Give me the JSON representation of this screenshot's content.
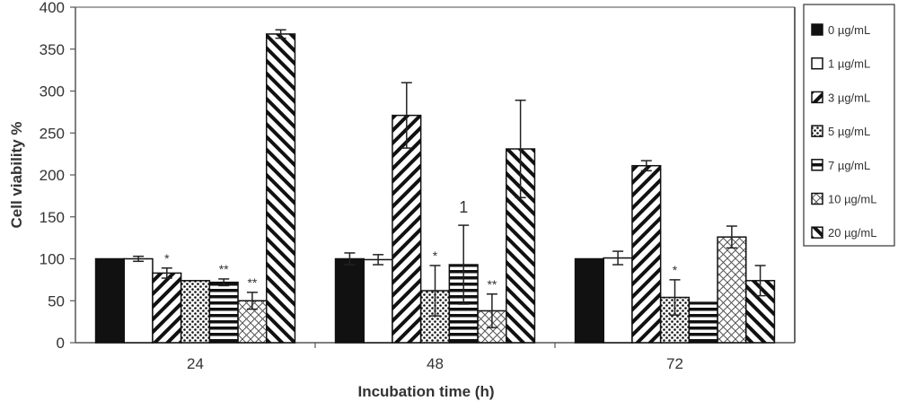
{
  "chart_data": {
    "type": "bar",
    "title": "",
    "xlabel": "Incubation time (h)",
    "ylabel": "Cell viability %",
    "ylim": [
      0,
      400
    ],
    "yticks": [
      0,
      50,
      100,
      150,
      200,
      250,
      300,
      350,
      400
    ],
    "grid": false,
    "legend_position": "right",
    "categories": [
      "24",
      "48",
      "72"
    ],
    "series": [
      {
        "name": "0 µg/mL",
        "pattern": "solid",
        "values": [
          100,
          100,
          100
        ],
        "errors": [
          0,
          7,
          0
        ],
        "annotations": [
          "",
          "",
          ""
        ]
      },
      {
        "name": "1 µg/mL",
        "pattern": "white",
        "values": [
          100,
          99,
          101
        ],
        "errors": [
          3,
          6,
          8
        ],
        "annotations": [
          "",
          "",
          ""
        ]
      },
      {
        "name": "3 µg/mL",
        "pattern": "diag-down",
        "values": [
          83,
          271,
          211
        ],
        "errors": [
          6,
          39,
          6
        ],
        "annotations": [
          "*",
          "",
          ""
        ]
      },
      {
        "name": "5 µg/mL",
        "pattern": "dots",
        "values": [
          74,
          62,
          54
        ],
        "errors": [
          0,
          30,
          21
        ],
        "annotations": [
          "",
          "*",
          "*"
        ]
      },
      {
        "name": "7 µg/mL",
        "pattern": "horizontal",
        "values": [
          72,
          93,
          48
        ],
        "errors": [
          4,
          47,
          0
        ],
        "annotations": [
          "**",
          "1",
          ""
        ]
      },
      {
        "name": "10 µg/mL",
        "pattern": "crosshatch",
        "values": [
          50,
          38,
          126
        ],
        "errors": [
          10,
          20,
          13
        ],
        "annotations": [
          "**",
          "**",
          ""
        ]
      },
      {
        "name": "20 µg/mL",
        "pattern": "diag-up",
        "values": [
          368,
          231,
          74
        ],
        "errors": [
          5,
          58,
          18
        ],
        "annotations": [
          "",
          "",
          ""
        ]
      }
    ]
  }
}
